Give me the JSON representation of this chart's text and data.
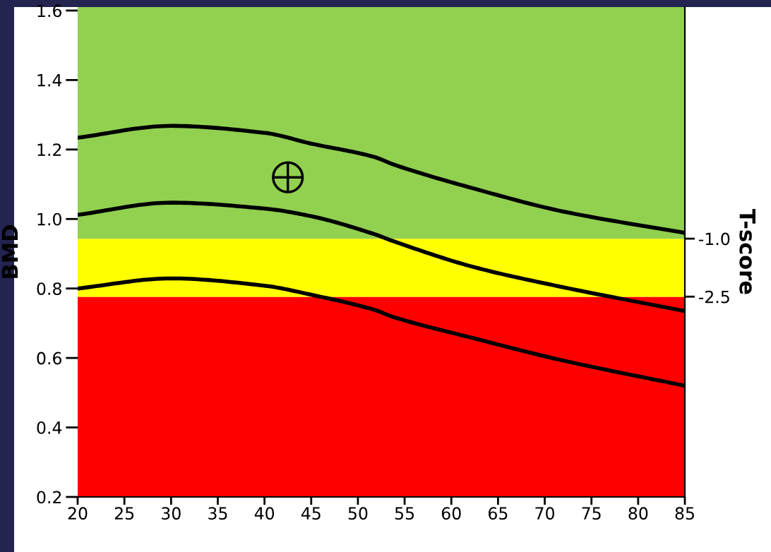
{
  "chart_data": {
    "type": "line",
    "ylabel": "BMD",
    "y2label": "T-score",
    "xlim": [
      20,
      85
    ],
    "xticks": [
      20,
      25,
      30,
      35,
      40,
      45,
      50,
      55,
      60,
      65,
      70,
      75,
      80,
      85
    ],
    "ylim": [
      0.2,
      1.61
    ],
    "yticks": [
      0.2,
      0.4,
      0.6,
      0.8,
      {
        "value": 1.0,
        "label": "1.0"
      },
      1.2,
      1.4,
      1.6
    ],
    "y2lim": [
      -7.68,
      4.99
    ],
    "y2ticks": [
      {
        "value": -1.0,
        "label": "-1.0"
      },
      {
        "value": -2.5,
        "label": "-2.5"
      }
    ],
    "grid": false,
    "legend": false,
    "bands": [
      {
        "axis": "y",
        "from": 0.2,
        "to": 0.776,
        "color": "#ff0000"
      },
      {
        "axis": "y",
        "from": 0.776,
        "to": 0.943,
        "color": "#ffff00"
      },
      {
        "axis": "y",
        "from": 0.943,
        "to": 1.61,
        "color": "#92d050"
      }
    ],
    "series": [
      {
        "type": "line",
        "color": "#000000",
        "marker": "none",
        "line_style": "solid",
        "x": [
          20,
          30,
          40,
          45,
          51.7,
          53.9,
          62.5,
          71.9,
          85
        ],
        "values": [
          1.234,
          1.268,
          1.248,
          1.217,
          1.179,
          1.156,
          1.087,
          1.022,
          0.96
        ]
      },
      {
        "type": "line",
        "color": "#000000",
        "marker": "none",
        "line_style": "solid",
        "x": [
          20,
          30,
          40,
          45,
          51.7,
          53.9,
          62.5,
          71.9,
          85
        ],
        "values": [
          1.012,
          1.047,
          1.03,
          1.008,
          0.957,
          0.935,
          0.861,
          0.804,
          0.735
        ]
      },
      {
        "type": "line",
        "color": "#000000",
        "marker": "none",
        "line_style": "solid",
        "x": [
          20,
          30,
          40,
          45,
          51.7,
          53.9,
          62.5,
          71.9,
          85
        ],
        "values": [
          0.8,
          0.829,
          0.808,
          0.782,
          0.739,
          0.717,
          0.656,
          0.593,
          0.52
        ]
      },
      {
        "type": "scatter",
        "color": "#000000",
        "marker": "circle",
        "x": [
          42.5
        ],
        "values": [
          1.12
        ]
      }
    ]
  }
}
